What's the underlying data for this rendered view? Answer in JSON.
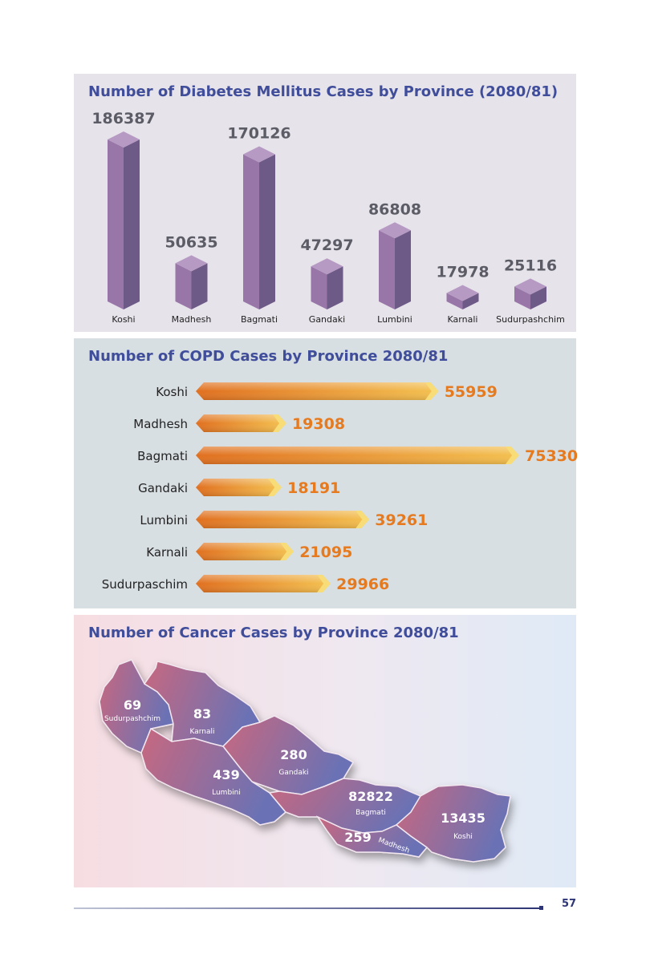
{
  "colors": {
    "title": "#3f4d9a",
    "diabetes_front": "#9877a8",
    "diabetes_side": "#6d5a86",
    "diabetes_top": "#b69ac4",
    "copd_bar_start": "#e07020",
    "copd_bar_end": "#f3c050",
    "copd_value": "#e57a1f",
    "map_west": "#c8687f",
    "map_east": "#6a72b5"
  },
  "footer": {
    "page_number": "57"
  },
  "chart_data": [
    {
      "type": "bar",
      "title": "Number of Diabetes Mellitus Cases by Province (2080/81)",
      "categories": [
        "Koshi",
        "Madhesh",
        "Bagmati",
        "Gandaki",
        "Lumbini",
        "Karnali",
        "Sudurpashchim"
      ],
      "values": [
        186387,
        50635,
        170126,
        47297,
        86808,
        17978,
        25116
      ],
      "value_labels": [
        "186387",
        "50635",
        "170126",
        "47297",
        "86808",
        "17978",
        "25116"
      ],
      "ylim": [
        0,
        186387
      ],
      "grid": false
    },
    {
      "type": "bar",
      "orientation": "horizontal",
      "title": "Number of COPD Cases by Province 2080/81",
      "categories": [
        "Koshi",
        "Madhesh",
        "Bagmati",
        "Gandaki",
        "Lumbini",
        "Karnali",
        "Sudurpaschim"
      ],
      "values": [
        55959,
        19308,
        75330,
        18191,
        39261,
        21095,
        29966
      ],
      "value_labels": [
        "55959",
        "19308",
        "75330",
        "18191",
        "39261",
        "21095",
        "29966"
      ],
      "grid": false
    },
    {
      "type": "map",
      "title": "Number of Cancer Cases by Province 2080/81",
      "regions": [
        {
          "name": "Sudurpashchim",
          "value": 69,
          "value_label": "69"
        },
        {
          "name": "Karnali",
          "value": 83,
          "value_label": "83"
        },
        {
          "name": "Gandaki",
          "value": 280,
          "value_label": "280"
        },
        {
          "name": "Lumbini",
          "value": 439,
          "value_label": "439"
        },
        {
          "name": "Bagmati",
          "value": 82822,
          "value_label": "82822"
        },
        {
          "name": "Madhesh",
          "value": 259,
          "value_label": "259"
        },
        {
          "name": "Koshi",
          "value": 13435,
          "value_label": "13435"
        }
      ]
    }
  ]
}
